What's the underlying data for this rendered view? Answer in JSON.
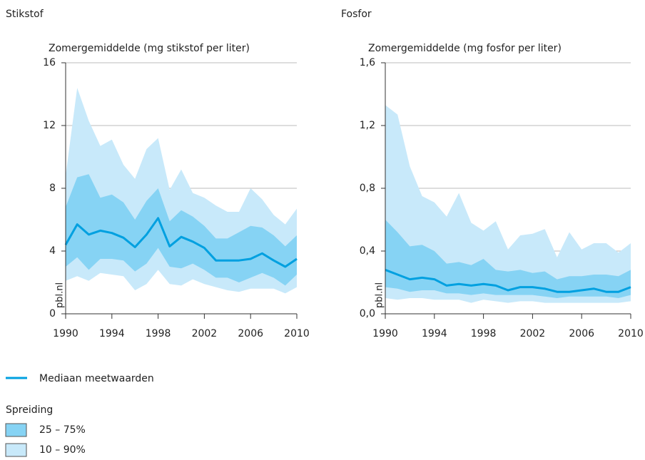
{
  "chart_data": [
    {
      "type": "band-line",
      "title": "Stikstof",
      "ylabel": "Zomergemiddelde (mg stikstof per liter)",
      "x": [
        1990,
        1991,
        1992,
        1993,
        1994,
        1995,
        1996,
        1997,
        1998,
        1999,
        2000,
        2001,
        2002,
        2003,
        2004,
        2005,
        2006,
        2007,
        2008,
        2009,
        2010
      ],
      "median": [
        4.4,
        5.7,
        5.05,
        5.3,
        5.15,
        4.85,
        4.25,
        5.05,
        6.1,
        4.3,
        4.9,
        4.6,
        4.2,
        3.4,
        3.4,
        3.4,
        3.5,
        3.85,
        3.4,
        3.0,
        3.5
      ],
      "p90": [
        8.8,
        14.4,
        12.3,
        10.7,
        11.1,
        9.5,
        8.6,
        10.5,
        11.2,
        7.9,
        9.2,
        7.7,
        7.4,
        6.9,
        6.5,
        6.5,
        8.0,
        7.3,
        6.3,
        5.7,
        6.7
      ],
      "p75": [
        6.8,
        8.7,
        8.9,
        7.4,
        7.6,
        7.1,
        6.0,
        7.2,
        8.0,
        5.9,
        6.6,
        6.2,
        5.6,
        4.8,
        4.8,
        5.2,
        5.6,
        5.5,
        5.0,
        4.3,
        5.0
      ],
      "p25": [
        3.0,
        3.6,
        2.8,
        3.5,
        3.5,
        3.4,
        2.7,
        3.2,
        4.2,
        3.0,
        2.9,
        3.2,
        2.8,
        2.3,
        2.3,
        2.0,
        2.3,
        2.6,
        2.3,
        1.8,
        2.5
      ],
      "p10": [
        2.1,
        2.4,
        2.1,
        2.6,
        2.5,
        2.4,
        1.5,
        1.9,
        2.8,
        1.9,
        1.8,
        2.2,
        1.9,
        1.7,
        1.5,
        1.4,
        1.6,
        1.6,
        1.6,
        1.3,
        1.7
      ],
      "xlim": [
        1990,
        2010
      ],
      "xticks": [
        1990,
        1994,
        1998,
        2002,
        2006,
        2010
      ],
      "ylim": [
        0,
        16
      ],
      "yticks": [
        0,
        4,
        8,
        12,
        16
      ],
      "grid": true
    },
    {
      "type": "band-line",
      "title": "Fosfor",
      "ylabel": "Zomergemiddelde (mg fosfor per liter)",
      "x": [
        1990,
        1991,
        1992,
        1993,
        1994,
        1995,
        1996,
        1997,
        1998,
        1999,
        2000,
        2001,
        2002,
        2003,
        2004,
        2005,
        2006,
        2007,
        2008,
        2009,
        2010
      ],
      "median": [
        0.28,
        0.25,
        0.22,
        0.23,
        0.22,
        0.18,
        0.19,
        0.18,
        0.19,
        0.18,
        0.15,
        0.17,
        0.17,
        0.16,
        0.14,
        0.14,
        0.15,
        0.16,
        0.14,
        0.14,
        0.17
      ],
      "p90": [
        1.33,
        1.27,
        0.94,
        0.75,
        0.71,
        0.62,
        0.77,
        0.58,
        0.53,
        0.59,
        0.41,
        0.5,
        0.51,
        0.54,
        0.36,
        0.52,
        0.41,
        0.45,
        0.45,
        0.39,
        0.45
      ],
      "p75": [
        0.6,
        0.52,
        0.43,
        0.44,
        0.4,
        0.32,
        0.33,
        0.31,
        0.35,
        0.28,
        0.27,
        0.28,
        0.26,
        0.27,
        0.22,
        0.24,
        0.24,
        0.25,
        0.25,
        0.24,
        0.28
      ],
      "p25": [
        0.17,
        0.16,
        0.14,
        0.15,
        0.15,
        0.13,
        0.13,
        0.12,
        0.13,
        0.12,
        0.12,
        0.12,
        0.12,
        0.11,
        0.1,
        0.11,
        0.11,
        0.11,
        0.11,
        0.1,
        0.12
      ],
      "p10": [
        0.1,
        0.09,
        0.1,
        0.1,
        0.09,
        0.09,
        0.09,
        0.07,
        0.09,
        0.08,
        0.07,
        0.08,
        0.08,
        0.07,
        0.07,
        0.07,
        0.07,
        0.07,
        0.07,
        0.07,
        0.08
      ],
      "xlim": [
        1990,
        2010
      ],
      "xticks": [
        1990,
        1994,
        1998,
        2002,
        2006,
        2010
      ],
      "ylim": [
        0,
        1.6
      ],
      "yticks": [
        {
          "value": 0,
          "label": "0,0"
        },
        {
          "value": 0.4,
          "label": "0,4"
        },
        {
          "value": 0.8,
          "label": "0,8"
        },
        {
          "value": 1.2,
          "label": "1,2"
        },
        {
          "value": 1.6,
          "label": "1,6"
        }
      ],
      "grid": true
    }
  ],
  "source": "pbl.nl",
  "legend": {
    "line": "Mediaan meetwaarden",
    "line_color": "#00a0e0",
    "heading": "Spreiding",
    "bands": [
      {
        "name": "25 – 75%",
        "color": "#86d3f4"
      },
      {
        "name": "10 – 90%",
        "color": "#c8e9fa"
      }
    ]
  }
}
